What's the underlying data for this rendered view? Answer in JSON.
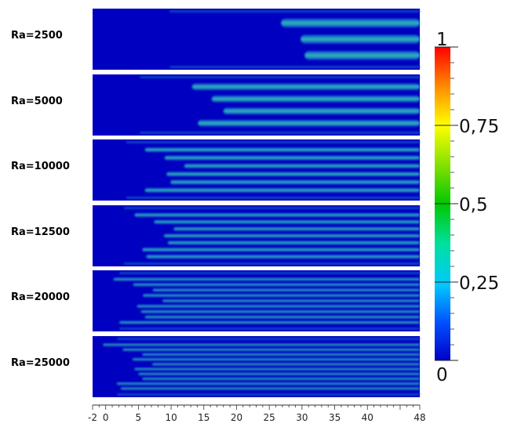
{
  "panels": [
    {
      "label": "Ra=2500",
      "front": 28,
      "fingers": 3
    },
    {
      "label": "Ra=5000",
      "front": 15,
      "fingers": 4
    },
    {
      "label": "Ra=10000",
      "front": 9,
      "fingers": 6
    },
    {
      "label": "Ra=12500",
      "front": 8,
      "fingers": 7
    },
    {
      "label": "Ra=20000",
      "front": 6,
      "fingers": 9
    },
    {
      "label": "Ra=25000",
      "front": 5,
      "fingers": 10
    }
  ],
  "colorbar": {
    "labels": [
      {
        "value": 1,
        "text": "1"
      },
      {
        "value": 0.75,
        "text": "0,75"
      },
      {
        "value": 0.5,
        "text": "0,5"
      },
      {
        "value": 0.25,
        "text": "0,25"
      },
      {
        "value": 0,
        "text": "0"
      }
    ]
  },
  "x_axis": {
    "ticks": [
      "-2",
      "0",
      "5",
      "10",
      "15",
      "20",
      "25",
      "30",
      "35",
      "40",
      "48"
    ],
    "range": [
      -2,
      48
    ]
  },
  "colors": {
    "background": "#0000c0",
    "finger": "#25b3b6",
    "edge": "#0b4ec8"
  }
}
